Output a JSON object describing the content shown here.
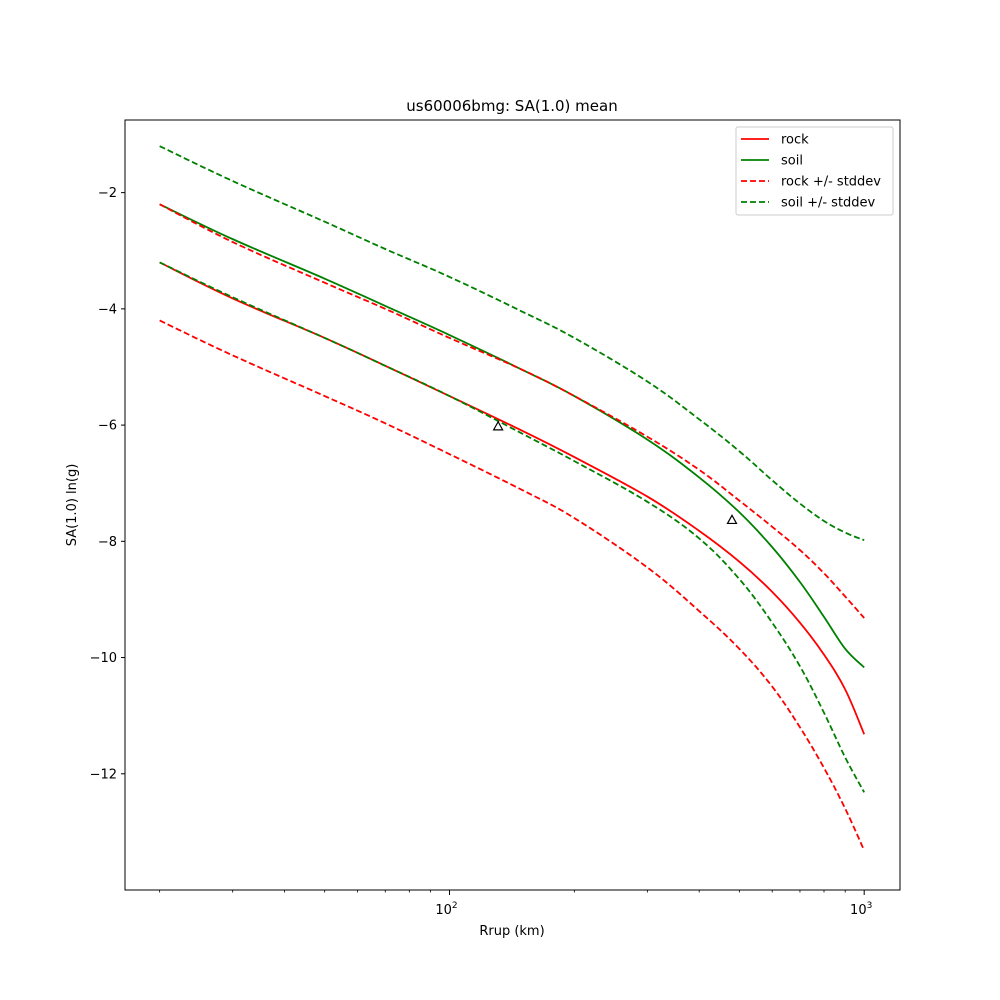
{
  "chart_data": {
    "type": "line",
    "title": "us60006bmg: SA(1.0) mean",
    "xlabel": "Rrup (km)",
    "ylabel": "SA(1.0) ln(g)",
    "xscale": "log",
    "xlim": [
      16.5,
      1220
    ],
    "ylim": [
      -14.0,
      -0.75
    ],
    "x_tick_labels": [
      {
        "base": "10",
        "exp": "2",
        "value": 100
      },
      {
        "base": "10",
        "exp": "3",
        "value": 1000
      }
    ],
    "y_ticks": [
      -2,
      -4,
      -6,
      -8,
      -10,
      -12
    ],
    "y_tick_labels": [
      "−2",
      "−4",
      "−6",
      "−8",
      "−10",
      "−12"
    ],
    "grid": false,
    "legend_position": "top-right",
    "colors": {
      "rock": "#ff0000",
      "soil": "#008000",
      "station": "#000000"
    },
    "x": [
      20,
      30,
      50,
      70,
      100,
      150,
      200,
      300,
      400,
      500,
      600,
      700,
      800,
      900,
      1000
    ],
    "series": [
      {
        "name": "rock",
        "style": "solid",
        "color": "#ff0000",
        "values": [
          -3.2,
          -3.82,
          -4.5,
          -4.98,
          -5.5,
          -6.1,
          -6.55,
          -7.23,
          -7.82,
          -8.35,
          -8.87,
          -9.4,
          -9.95,
          -10.55,
          -11.32
        ]
      },
      {
        "name": "soil",
        "style": "solid",
        "color": "#008000",
        "values": [
          -2.2,
          -2.8,
          -3.48,
          -3.95,
          -4.45,
          -5.05,
          -5.5,
          -6.25,
          -6.9,
          -7.5,
          -8.1,
          -8.7,
          -9.3,
          -9.85,
          -10.17
        ]
      },
      {
        "name": "rock +/- stddev",
        "style": "dashed",
        "color": "#ff0000",
        "values": [
          -2.2,
          -2.85,
          -3.55,
          -4.0,
          -4.5,
          -5.05,
          -5.5,
          -6.2,
          -6.77,
          -7.3,
          -7.75,
          -8.15,
          -8.55,
          -8.95,
          -9.32
        ]
      },
      {
        "name": "",
        "style": "dashed",
        "color": "#ff0000",
        "values": [
          -4.2,
          -4.8,
          -5.5,
          -5.97,
          -6.5,
          -7.12,
          -7.6,
          -8.45,
          -9.2,
          -9.85,
          -10.5,
          -11.2,
          -11.9,
          -12.6,
          -13.32
        ]
      },
      {
        "name": "soil +/- stddev",
        "style": "dashed",
        "color": "#008000",
        "values": [
          -1.2,
          -1.8,
          -2.5,
          -2.97,
          -3.45,
          -4.05,
          -4.5,
          -5.25,
          -5.9,
          -6.45,
          -6.95,
          -7.35,
          -7.65,
          -7.85,
          -7.98
        ]
      },
      {
        "name": "",
        "style": "dashed",
        "color": "#008000",
        "values": [
          -3.2,
          -3.8,
          -4.5,
          -4.98,
          -5.5,
          -6.15,
          -6.62,
          -7.32,
          -7.95,
          -8.65,
          -9.4,
          -10.15,
          -10.95,
          -11.72,
          -12.32
        ]
      }
    ],
    "stations": [
      {
        "x": 131,
        "y": -6.02
      },
      {
        "x": 480,
        "y": -7.63
      }
    ],
    "legend": [
      {
        "label": "rock",
        "color": "#ff0000",
        "style": "solid"
      },
      {
        "label": "soil",
        "color": "#008000",
        "style": "solid"
      },
      {
        "label": "rock +/- stddev",
        "color": "#ff0000",
        "style": "dashed"
      },
      {
        "label": "soil +/- stddev",
        "color": "#008000",
        "style": "dashed"
      }
    ]
  }
}
